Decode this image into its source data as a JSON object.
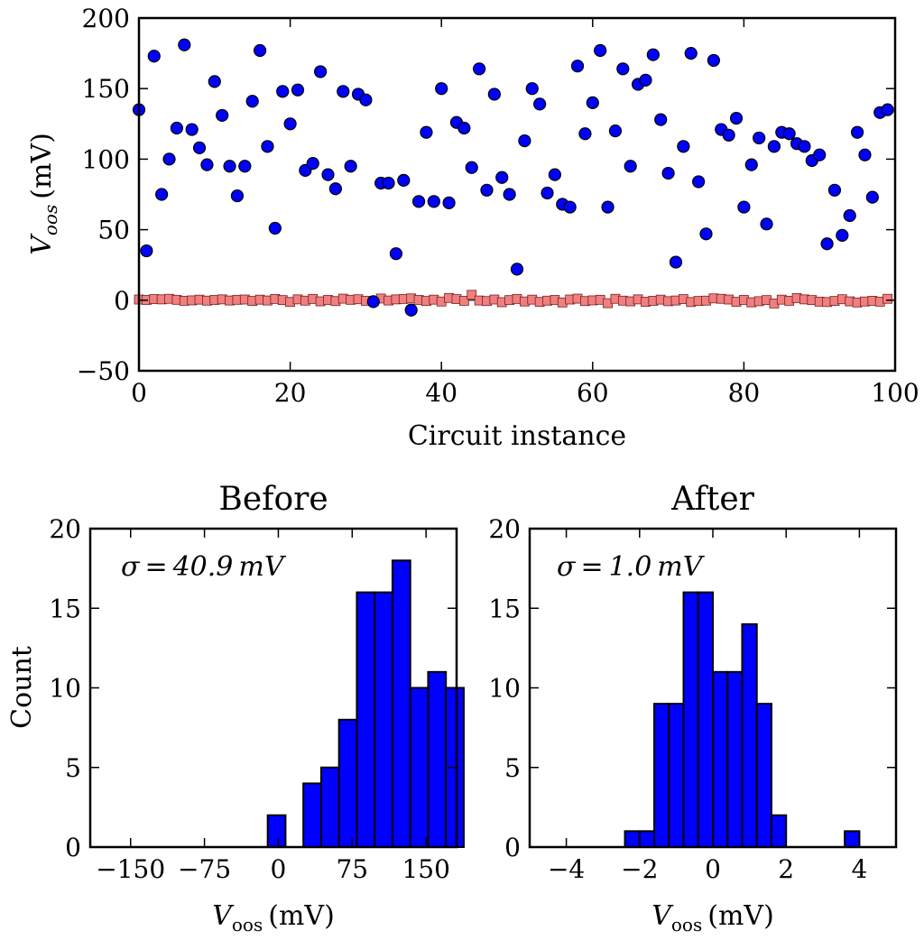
{
  "chart_data": [
    {
      "id": "scatter",
      "type": "scatter",
      "xlabel": "Circuit instance",
      "ylabel_main": "V",
      "ylabel_sub": "oos",
      "ylabel_unit": "(mV)",
      "xlim": [
        0,
        100
      ],
      "ylim": [
        -50,
        200
      ],
      "xticks": [
        0,
        20,
        40,
        60,
        80,
        100
      ],
      "yticks": [
        -50,
        0,
        50,
        100,
        150,
        200
      ],
      "ytick_labels": [
        "−50",
        "0",
        "50",
        "100",
        "150",
        "200"
      ],
      "series": [
        {
          "name": "Before",
          "color": "#0000ff",
          "x": [
            0,
            1,
            2,
            3,
            4,
            5,
            6,
            7,
            8,
            9,
            10,
            11,
            12,
            13,
            14,
            15,
            16,
            17,
            18,
            19,
            20,
            21,
            22,
            23,
            24,
            25,
            26,
            27,
            28,
            29,
            30,
            31,
            32,
            33,
            34,
            35,
            36,
            37,
            38,
            39,
            40,
            41,
            42,
            43,
            44,
            45,
            46,
            47,
            48,
            49,
            50,
            51,
            52,
            53,
            54,
            55,
            56,
            57,
            58,
            59,
            60,
            61,
            62,
            63,
            64,
            65,
            66,
            67,
            68,
            69,
            70,
            71,
            72,
            73,
            74,
            75,
            76,
            77,
            78,
            79,
            80,
            81,
            82,
            83,
            84,
            85,
            86,
            87,
            88,
            89,
            90,
            91,
            92,
            93,
            94,
            95,
            96,
            97,
            98,
            99
          ],
          "y": [
            135,
            35,
            173,
            75,
            100,
            122,
            181,
            121,
            108,
            96,
            155,
            131,
            95,
            74,
            95,
            141,
            177,
            109,
            51,
            148,
            125,
            149,
            92,
            97,
            162,
            89,
            79,
            148,
            95,
            146,
            142,
            -1,
            83,
            83,
            33,
            85,
            -7,
            70,
            119,
            70,
            150,
            69,
            126,
            122,
            94,
            164,
            78,
            146,
            87,
            75,
            22,
            113,
            150,
            139,
            76,
            89,
            68,
            66,
            166,
            118,
            140,
            177,
            66,
            120,
            164,
            95,
            153,
            156,
            174,
            128,
            90,
            27,
            109,
            175,
            84,
            47,
            170,
            121,
            117,
            129,
            66,
            96,
            115,
            54,
            109,
            119,
            118,
            111,
            109,
            99,
            103,
            40,
            78,
            46,
            60,
            119,
            103,
            73,
            133,
            135
          ]
        },
        {
          "name": "After",
          "color": "#f08080",
          "x": [
            0,
            1,
            2,
            3,
            4,
            5,
            6,
            7,
            8,
            9,
            10,
            11,
            12,
            13,
            14,
            15,
            16,
            17,
            18,
            19,
            20,
            21,
            22,
            23,
            24,
            25,
            26,
            27,
            28,
            29,
            30,
            31,
            32,
            33,
            34,
            35,
            36,
            37,
            38,
            39,
            40,
            41,
            42,
            43,
            44,
            45,
            46,
            47,
            48,
            49,
            50,
            51,
            52,
            53,
            54,
            55,
            56,
            57,
            58,
            59,
            60,
            61,
            62,
            63,
            64,
            65,
            66,
            67,
            68,
            69,
            70,
            71,
            72,
            73,
            74,
            75,
            76,
            77,
            78,
            79,
            80,
            81,
            82,
            83,
            84,
            85,
            86,
            87,
            88,
            89,
            90,
            91,
            92,
            93,
            94,
            95,
            96,
            97,
            98,
            99
          ],
          "y": [
            0.5,
            0.2,
            0.8,
            0.6,
            1.0,
            0.3,
            -0.4,
            -0.1,
            0.4,
            -0.3,
            0.2,
            0.6,
            -0.2,
            0.3,
            0.5,
            -0.5,
            0.4,
            -0.2,
            0.9,
            0.1,
            -1.2,
            0.6,
            -0.3,
            0.9,
            -0.8,
            0.2,
            -0.6,
            1.1,
            0.3,
            0.7,
            -0.4,
            -0.8,
            1.2,
            -0.2,
            0.6,
            0.9,
            1.3,
            0.2,
            -0.5,
            0.4,
            -0.9,
            1.6,
            0.8,
            -0.4,
            3.8,
            -0.2,
            -0.6,
            0.5,
            -1.4,
            0.1,
            0.9,
            -0.9,
            0.4,
            -1.2,
            -0.3,
            0.2,
            -1.6,
            0.5,
            1.1,
            -0.6,
            -0.1,
            0.3,
            -2.1,
            1.0,
            -0.3,
            -0.8,
            0.6,
            -1.1,
            -0.4,
            0.4,
            -0.7,
            -0.2,
            0.8,
            -1.3,
            -0.5,
            -0.3,
            1.3,
            1.0,
            0.5,
            -1.1,
            0.2,
            -1.5,
            -0.7,
            0.1,
            -2.3,
            0.4,
            -0.4,
            1.5,
            0.6,
            0.1,
            -1.0,
            -1.3,
            -0.5,
            0.7,
            -0.8,
            -1.6,
            -0.9,
            -0.4,
            -1.0,
            1.0
          ]
        }
      ]
    },
    {
      "id": "hist-before",
      "type": "bar",
      "title": "Before",
      "annotation": "σ = 40.9 mV",
      "ylabel": "Count",
      "xlabel_main": "V",
      "xlabel_sub": "oos",
      "xlabel_unit": "(mV)",
      "xlim": [
        -191,
        181
      ],
      "ylim": [
        0,
        20
      ],
      "xticks": [
        -150,
        -75,
        0,
        75,
        150
      ],
      "xtick_labels": [
        "−150",
        "−75",
        "0",
        "75",
        "150"
      ],
      "yticks": [
        0,
        5,
        10,
        15,
        20
      ],
      "bin_edges": [
        -10.8,
        7.3,
        25.4,
        43.5,
        61.6,
        79.7,
        97.8,
        115.9,
        134.0,
        152.1,
        170.2,
        188.3
      ],
      "values": [
        2,
        0,
        4,
        5,
        8,
        16,
        16,
        18,
        10,
        11,
        10
      ],
      "color": "#0000ff"
    },
    {
      "id": "hist-after",
      "type": "bar",
      "title": "After",
      "annotation": "σ = 1.0 mV",
      "ylabel": "",
      "xlabel_main": "V",
      "xlabel_sub": "oos",
      "xlabel_unit": "(mV)",
      "xlim": [
        -5,
        5
      ],
      "ylim": [
        0,
        20
      ],
      "xticks": [
        -4,
        -2,
        0,
        2,
        4
      ],
      "xtick_labels": [
        "−4",
        "−2",
        "0",
        "2",
        "4"
      ],
      "yticks": [
        0,
        5,
        10,
        15,
        20
      ],
      "bin_edges": [
        -2.4,
        -2.0,
        -1.6,
        -1.2,
        -0.8,
        -0.4,
        0.0,
        0.4,
        0.8,
        1.2,
        1.6,
        2.0,
        2.4,
        2.8,
        3.2,
        3.6,
        4.0
      ],
      "values": [
        1,
        1,
        9,
        9,
        16,
        16,
        11,
        11,
        14,
        9,
        2,
        0,
        0,
        0,
        0,
        1
      ],
      "color": "#0000ff"
    }
  ]
}
